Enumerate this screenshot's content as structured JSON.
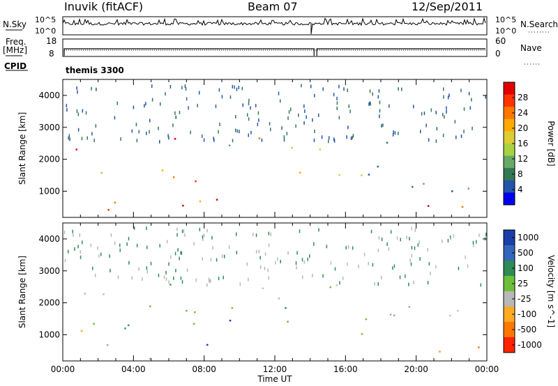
{
  "header": {
    "station": "Inuvik (fitACF)",
    "beam": "Beam 07",
    "date": "12/Sep/2011"
  },
  "summary": {
    "nsky_label": "N.Sky",
    "nsky_ticks": [
      "10^5",
      "10^0"
    ],
    "nsearch_label": "N.Search",
    "nsearch_ticks": [
      "10^5",
      "10^0"
    ],
    "freq_label": "Freq.",
    "freq_unit": "[MHz]",
    "freq_ticks": [
      "18",
      "8"
    ],
    "nave_label": "Nave",
    "nave_ticks": [
      "60",
      "0"
    ],
    "cpid_label": "CPID",
    "cpid_value": "themis 3300"
  },
  "chart_data": [
    {
      "type": "heatmap",
      "panel": "power",
      "ylabel": "Slant Range [km]",
      "xlabel": "",
      "colorbar_label": "Power [dB]",
      "colorbar_ticks": [
        "28",
        "24",
        "20",
        "16",
        "12",
        "8",
        "4"
      ],
      "colorbar_colors": [
        "#e00000",
        "#ff3300",
        "#ff7700",
        "#ffaa00",
        "#ddcc33",
        "#aad044",
        "#66aa66",
        "#337755",
        "#2255aa",
        "#0000ee"
      ],
      "xlim": [
        "00:00",
        "24:00"
      ],
      "ylim": [
        180,
        4500
      ],
      "yticks": [
        1000,
        2000,
        3000,
        4000
      ],
      "blobs": [
        {
          "t0": 0.5,
          "t1": 2.6,
          "r0": 1950,
          "r1": 2550,
          "v": 0.85
        },
        {
          "t0": 1.0,
          "t1": 2.5,
          "r0": 900,
          "r1": 1800,
          "v": 0.6
        },
        {
          "t0": 1.0,
          "t1": 5.5,
          "r0": 250,
          "r1": 750,
          "v": 0.95
        },
        {
          "t0": 3.0,
          "t1": 6.5,
          "r0": 1300,
          "r1": 2000,
          "v": 0.5
        },
        {
          "t0": 5.5,
          "t1": 7.0,
          "r0": 1700,
          "r1": 2700,
          "v": 0.7
        },
        {
          "t0": 6.5,
          "t1": 9.8,
          "r0": 400,
          "r1": 1700,
          "v": 0.9
        },
        {
          "t0": 8.5,
          "t1": 10.0,
          "r0": 1800,
          "r1": 2500,
          "v": 0.55
        },
        {
          "t0": 11.0,
          "t1": 14.0,
          "r0": 2100,
          "r1": 2700,
          "v": 0.65
        },
        {
          "t0": 11.0,
          "t1": 14.0,
          "r0": 1400,
          "r1": 1900,
          "v": 0.4
        },
        {
          "t0": 13.5,
          "t1": 17.5,
          "r0": 1000,
          "r1": 1600,
          "v": 0.45
        },
        {
          "t0": 14.5,
          "t1": 19.5,
          "r0": 2100,
          "r1": 2600,
          "v": 0.55
        },
        {
          "t0": 17.0,
          "t1": 24.0,
          "r0": 1000,
          "r1": 2000,
          "v": 0.35
        },
        {
          "t0": 19.5,
          "t1": 24.0,
          "r0": 220,
          "r1": 800,
          "v": 0.9
        }
      ]
    },
    {
      "type": "heatmap",
      "panel": "velocity",
      "ylabel": "Slant Range [km]",
      "xlabel": "Time UT",
      "colorbar_label": "Velocity [m s^-1]",
      "colorbar_ticks": [
        "1000",
        "500",
        "100",
        "25",
        "-25",
        "-100",
        "-500",
        "-1000"
      ],
      "colorbar_colors": [
        "#1a3fa8",
        "#3366bb",
        "#2e8b57",
        "#6dbf3a",
        "#b8b8b8",
        "#ffaa22",
        "#ff7700",
        "#ff2200"
      ],
      "xlim": [
        "00:00",
        "24:00"
      ],
      "ylim": [
        180,
        4500
      ],
      "xticks": [
        "00:00",
        "04:00",
        "08:00",
        "12:00",
        "16:00",
        "20:00",
        "00:00"
      ],
      "yticks": [
        1000,
        2000,
        3000,
        4000
      ],
      "blobs": [
        {
          "t0": 0.5,
          "t1": 4.5,
          "r0": 2100,
          "r1": 2550,
          "v": "grey"
        },
        {
          "t0": 0.5,
          "t1": 3.0,
          "r0": 800,
          "r1": 1700,
          "v": "orange"
        },
        {
          "t0": 1.5,
          "t1": 5.5,
          "r0": 250,
          "r1": 800,
          "v": "grey"
        },
        {
          "t0": 3.0,
          "t1": 6.5,
          "r0": 1200,
          "r1": 2000,
          "v": "green"
        },
        {
          "t0": 5.5,
          "t1": 7.5,
          "r0": 1700,
          "r1": 2600,
          "v": "green"
        },
        {
          "t0": 6.5,
          "t1": 9.5,
          "r0": 500,
          "r1": 1800,
          "v": "blue"
        },
        {
          "t0": 8.5,
          "t1": 10.0,
          "r0": 1600,
          "r1": 2400,
          "v": "green"
        },
        {
          "t0": 11.0,
          "t1": 14.0,
          "r0": 2100,
          "r1": 2700,
          "v": "grey"
        },
        {
          "t0": 11.0,
          "t1": 13.5,
          "r0": 1000,
          "r1": 1900,
          "v": "green"
        },
        {
          "t0": 14.5,
          "t1": 19.5,
          "r0": 2100,
          "r1": 2600,
          "v": "grey"
        },
        {
          "t0": 14.0,
          "t1": 17.5,
          "r0": 1000,
          "r1": 1700,
          "v": "green"
        },
        {
          "t0": 18.5,
          "t1": 24.0,
          "r0": 1000,
          "r1": 1900,
          "v": "grey"
        },
        {
          "t0": 19.5,
          "t1": 24.0,
          "r0": 220,
          "r1": 800,
          "v": "orange"
        }
      ]
    }
  ]
}
